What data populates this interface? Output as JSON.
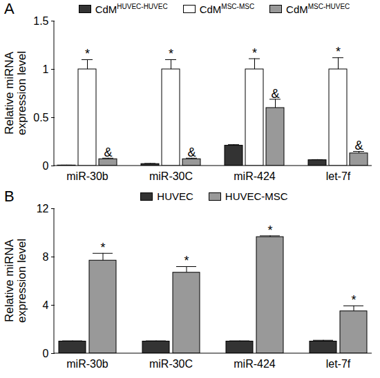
{
  "chart_data": [
    {
      "type": "bar",
      "title": "A",
      "y_label": "Relative miRNA\nexpression level",
      "categories": [
        "miR-30b",
        "miR-30C",
        "miR-424",
        "let-7f"
      ],
      "series": [
        {
          "name": "CdMHUVEC-HUVEC",
          "color": "#333333",
          "values": [
            0.005,
            0.02,
            0.21,
            0.06
          ],
          "errors": [
            0.003,
            0.005,
            0.01,
            0.005
          ]
        },
        {
          "name": "CdMMSC-MSC",
          "color": "#ffffff",
          "values": [
            1,
            1,
            1,
            1
          ],
          "errors": [
            0.1,
            0.1,
            0.11,
            0.12
          ],
          "significance": [
            "*",
            "*",
            "*",
            "*"
          ]
        },
        {
          "name": "CdMMSC-HUVEC",
          "color": "#999999",
          "values": [
            0.07,
            0.07,
            0.6,
            0.13
          ],
          "errors": [
            0.01,
            0.01,
            0.09,
            0.02
          ],
          "significance": [
            "&",
            "&",
            "&",
            "&"
          ]
        }
      ],
      "ylim": [
        0,
        1.5
      ],
      "yticks": [
        0,
        0.5,
        1,
        1.5
      ],
      "legend": "top"
    },
    {
      "type": "bar",
      "title": "B",
      "y_label": "Relative miRNA\nexpression level",
      "categories": [
        "miR-30b",
        "miR-30C",
        "miR-424",
        "let-7f"
      ],
      "series": [
        {
          "name": "HUVEC",
          "color": "#333333",
          "values": [
            1,
            1,
            1,
            1
          ],
          "errors": [
            0.05,
            0.05,
            0.05,
            0.1
          ]
        },
        {
          "name": "HUVEC-MSC",
          "color": "#999999",
          "values": [
            7.7,
            6.7,
            9.65,
            3.5
          ],
          "errors": [
            0.6,
            0.5,
            0.1,
            0.45
          ],
          "significance": [
            "*",
            "*",
            "*",
            "*"
          ]
        }
      ],
      "ylim": [
        0,
        12
      ],
      "yticks": [
        0,
        4,
        8,
        12
      ],
      "legend": "top"
    }
  ]
}
